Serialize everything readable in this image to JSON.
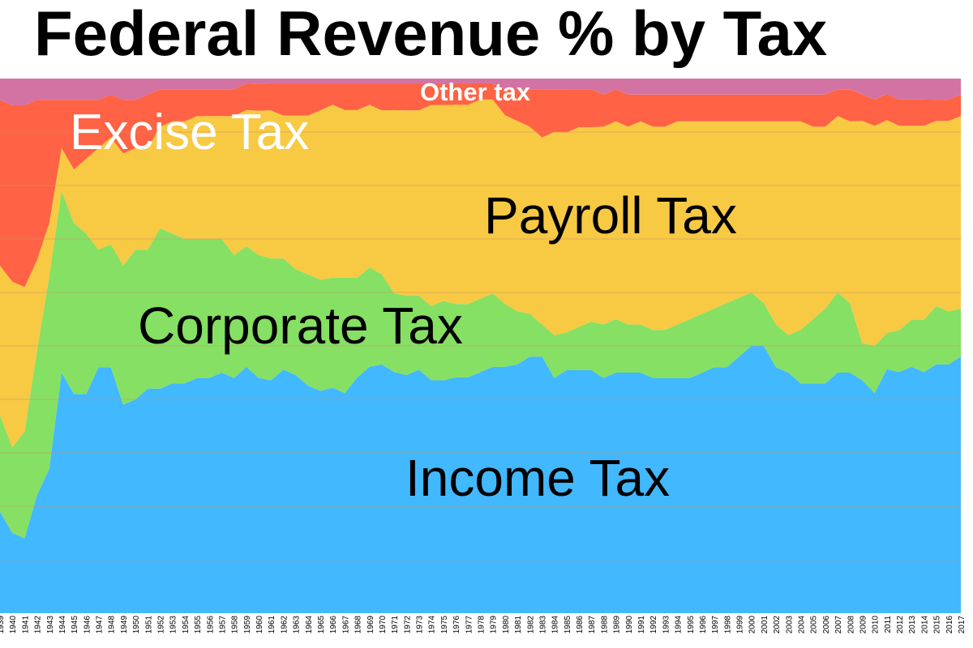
{
  "chart_data": {
    "type": "area",
    "stacked": true,
    "percent_stacked": true,
    "title": "Federal Revenue % by Tax",
    "xlabel": "",
    "ylabel": "",
    "ylim": [
      0,
      100
    ],
    "grid": true,
    "legend": "inline labels",
    "colors": {
      "income": "#42B8FF",
      "corporate": "#86E063",
      "payroll": "#F8C943",
      "excise": "#FF6244",
      "other": "#D373A3",
      "gridline": "#C8956C"
    },
    "x": [
      1939,
      1940,
      1941,
      1942,
      1943,
      1944,
      1945,
      1946,
      1947,
      1948,
      1949,
      1950,
      1951,
      1952,
      1953,
      1954,
      1955,
      1956,
      1957,
      1958,
      1959,
      1960,
      1961,
      1962,
      1963,
      1964,
      1965,
      1966,
      1967,
      1968,
      1969,
      1970,
      1971,
      1972,
      1973,
      1974,
      1975,
      1976,
      1977,
      1978,
      1979,
      1980,
      1981,
      1982,
      1983,
      1984,
      1985,
      1986,
      1987,
      1988,
      1989,
      1990,
      1991,
      1992,
      1993,
      1994,
      1995,
      1996,
      1997,
      1998,
      1999,
      2000,
      2001,
      2002,
      2003,
      2004,
      2005,
      2006,
      2007,
      2008,
      2009,
      2010,
      2011,
      2012,
      2013,
      2014,
      2015,
      2016,
      2017
    ],
    "tick_labels": [
      "1939",
      "1940",
      "1941",
      "1942",
      "1943",
      "1944",
      "1945",
      "1946",
      "1947",
      "1948",
      "1949",
      "1950",
      "1951",
      "1952",
      "1953",
      "1954",
      "1955",
      "1956",
      "1957",
      "1958",
      "1959",
      "1960",
      "1961",
      "1962",
      "1963",
      "1964",
      "1965",
      "1966",
      "1967",
      "1968",
      "1969",
      "1970",
      "1971",
      "1972",
      "1973",
      "1974",
      "1975",
      "1976",
      "1977",
      "1978",
      "1979",
      "1980",
      "1981",
      "1982",
      "1983",
      "1984",
      "1985",
      "1986",
      "1987",
      "1988",
      "1989",
      "1990",
      "1991",
      "1992",
      "1993",
      "1994",
      "1995",
      "1996",
      "1997",
      "1998",
      "1999",
      "2000",
      "2001",
      "2002",
      "2003",
      "2004",
      "2005",
      "2006",
      "2007",
      "2008",
      "2009",
      "2010",
      "2011",
      "2012",
      "2013",
      "2014",
      "2015",
      "2016",
      "2017"
    ],
    "series": [
      {
        "key": "income",
        "name": "Income Tax",
        "values": [
          19,
          15,
          14,
          22,
          27,
          45,
          41,
          41,
          46,
          46,
          39,
          40,
          42,
          42,
          43,
          43,
          44,
          44,
          45,
          44,
          47,
          44,
          44,
          46,
          45,
          43,
          42,
          43,
          42,
          45,
          47,
          47,
          46,
          45,
          46,
          44,
          44,
          45,
          45,
          46,
          47,
          47,
          47,
          48,
          48,
          44,
          45,
          45,
          45,
          44,
          45,
          45,
          45,
          44,
          44,
          44,
          44,
          45,
          46,
          46,
          48,
          50,
          50,
          46,
          45,
          43,
          43,
          43,
          45,
          45,
          44,
          42,
          47,
          46,
          47,
          46,
          47,
          47,
          48
        ]
      },
      {
        "key": "corporate",
        "name": "Corporate Tax",
        "values": [
          18,
          16,
          20,
          27,
          36,
          34,
          32,
          30,
          22,
          23,
          26,
          28,
          26,
          30,
          28,
          27,
          26,
          26,
          25,
          23,
          23,
          23,
          23,
          21,
          20,
          21,
          21,
          21,
          22,
          19,
          19,
          17,
          15,
          15,
          14,
          14,
          15,
          14,
          14,
          14,
          14,
          12,
          10,
          8,
          6,
          8,
          7,
          8,
          9,
          10,
          10,
          9,
          9,
          9,
          9,
          10,
          11,
          11,
          11,
          12,
          11,
          10,
          8,
          8,
          7,
          10,
          12,
          14,
          15,
          13,
          7,
          9,
          7,
          8,
          9,
          10,
          11,
          10,
          9
        ]
      },
      {
        "key": "payroll",
        "name": "Payroll Tax",
        "values": [
          28,
          31,
          27,
          17,
          10,
          8,
          10,
          14,
          19,
          20,
          21,
          19,
          19,
          19,
          21,
          22,
          23,
          23,
          23,
          26,
          26,
          27,
          28,
          27,
          29,
          30,
          32,
          33,
          32,
          32,
          31,
          31,
          35,
          35,
          35,
          38,
          37,
          38,
          38,
          38,
          37,
          36,
          36,
          35,
          35,
          38,
          37,
          37,
          36,
          37,
          37,
          37,
          38,
          38,
          38,
          38,
          37,
          36,
          35,
          34,
          33,
          32,
          34,
          38,
          40,
          39,
          36,
          34,
          33,
          34,
          42,
          42,
          41,
          39,
          37,
          37,
          35,
          36,
          36
        ]
      },
      {
        "key": "excise",
        "name": "Excise Tax",
        "values": [
          31,
          33,
          34,
          30,
          23,
          9,
          13,
          11,
          9,
          8,
          10,
          9,
          10,
          7,
          6,
          6,
          5,
          5,
          5,
          5,
          5,
          5,
          5,
          6,
          6,
          6,
          5,
          4,
          5,
          5,
          4,
          5,
          5,
          5,
          5,
          4,
          4,
          4,
          4,
          3,
          3,
          5,
          6,
          7,
          9,
          8,
          8,
          7,
          7,
          6,
          6,
          6,
          5,
          6,
          6,
          5,
          5,
          5,
          5,
          5,
          5,
          5,
          5,
          5,
          5,
          5,
          6,
          6,
          5,
          6,
          5,
          5,
          5,
          5,
          5,
          5,
          4,
          4,
          4
        ]
      },
      {
        "key": "other",
        "name": "Other tax",
        "values": [
          4,
          5,
          5,
          4,
          4,
          4,
          4,
          4,
          4,
          3,
          4,
          4,
          3,
          2,
          2,
          2,
          2,
          2,
          2,
          2,
          1,
          1,
          1,
          1,
          1,
          1,
          1,
          1,
          1,
          1,
          1,
          1,
          1,
          1,
          1,
          1,
          1,
          1,
          1,
          1,
          1,
          2,
          2,
          2,
          2,
          2,
          2,
          2,
          2,
          3,
          2,
          3,
          3,
          3,
          3,
          3,
          3,
          3,
          3,
          3,
          3,
          3,
          3,
          3,
          3,
          3,
          3,
          3,
          2,
          2,
          3,
          4,
          3,
          4,
          4,
          4,
          4,
          4,
          3
        ]
      }
    ],
    "annotations": [
      {
        "series": "income",
        "text": "Income Tax",
        "color": "#000000"
      },
      {
        "series": "corporate",
        "text": "Corporate Tax",
        "color": "#000000"
      },
      {
        "series": "payroll",
        "text": "Payroll Tax",
        "color": "#000000"
      },
      {
        "series": "excise",
        "text": "Excise Tax",
        "color": "#ffffff"
      },
      {
        "series": "other",
        "text": "Other tax",
        "color": "#ffffff"
      }
    ]
  }
}
